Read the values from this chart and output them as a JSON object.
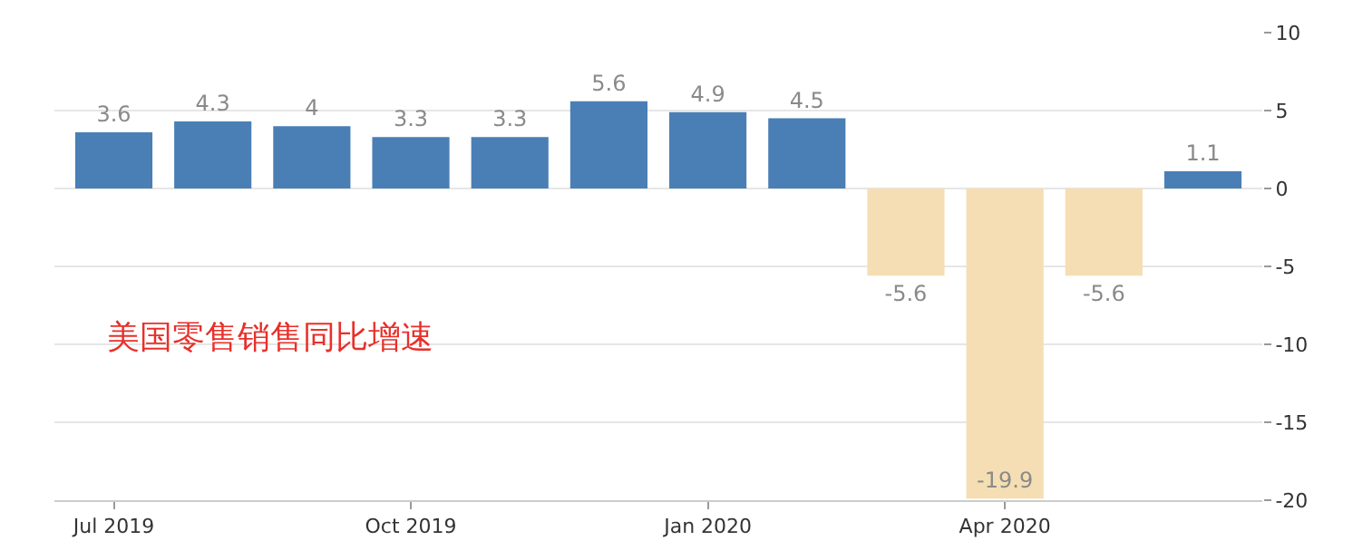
{
  "chart_data": {
    "type": "bar",
    "categories": [
      "Jul 2019",
      null,
      null,
      "Oct 2019",
      null,
      null,
      "Jan 2020",
      null,
      null,
      "Apr 2020",
      null,
      null
    ],
    "values": [
      3.6,
      4.3,
      4,
      3.3,
      3.3,
      5.6,
      4.9,
      4.5,
      -5.6,
      -19.9,
      -5.6,
      1.1
    ],
    "colors": [
      "#4a7fb5",
      "#4a7fb5",
      "#4a7fb5",
      "#4a7fb5",
      "#4a7fb5",
      "#4a7fb5",
      "#4a7fb5",
      "#4a7fb5",
      "#f5deb3",
      "#f5deb3",
      "#f5deb3",
      "#4a7fb5"
    ],
    "data_labels": true,
    "ylim": [
      -20,
      10
    ],
    "yticks": [
      -20,
      -15,
      -10,
      -5,
      0,
      5,
      10
    ],
    "grid": "y",
    "annotations": [
      "美国零售销售同比增速"
    ]
  }
}
